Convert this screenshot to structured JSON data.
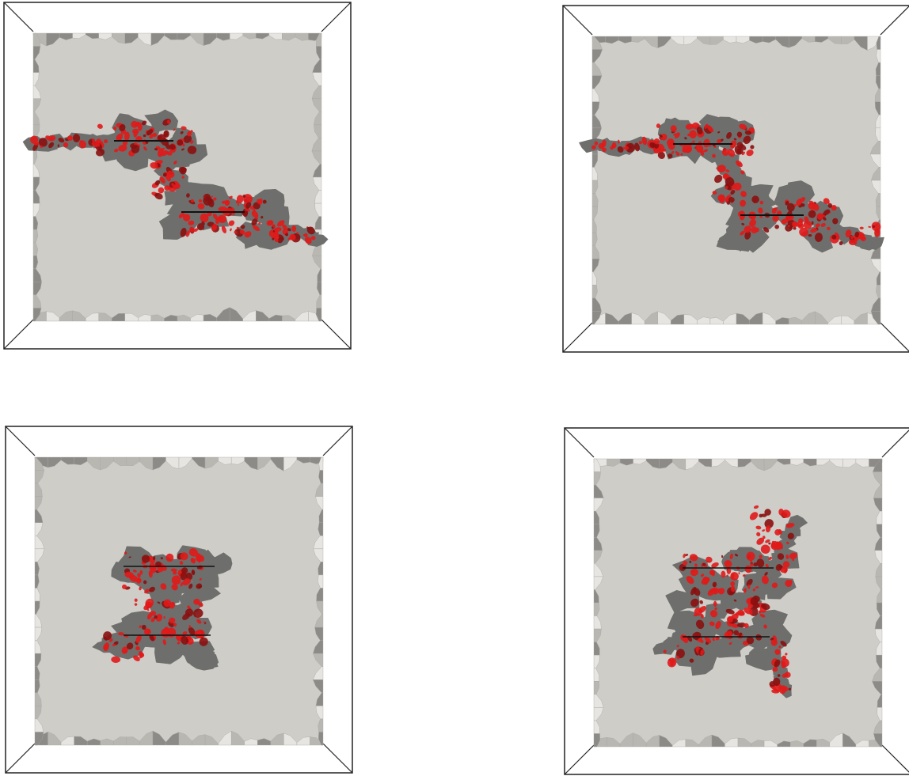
{
  "figure": {
    "panels": [
      {
        "id": "panel-tl",
        "name": "fracture-panel-top-left",
        "crack": "horizontal-offset"
      },
      {
        "id": "panel-tr",
        "name": "fracture-panel-top-right",
        "crack": "horizontal-offset"
      },
      {
        "id": "panel-bl",
        "name": "fracture-panel-bottom-left",
        "crack": "vertical-stacked"
      },
      {
        "id": "panel-br",
        "name": "fracture-panel-bottom-right",
        "crack": "vertical-stacked-branched"
      }
    ],
    "colors": {
      "background": "#ffffff",
      "box_edge": "#222222",
      "specimen": "#cfcdc8",
      "specimen_edge_light": "#e6e5e1",
      "specimen_edge_dark": "#8c8b88",
      "fracture_surface": "#6e6e6c",
      "damage_marks": "#e01a1a",
      "damage_marks_dark": "#8a0f0f",
      "initial_crack": "#111111"
    }
  }
}
